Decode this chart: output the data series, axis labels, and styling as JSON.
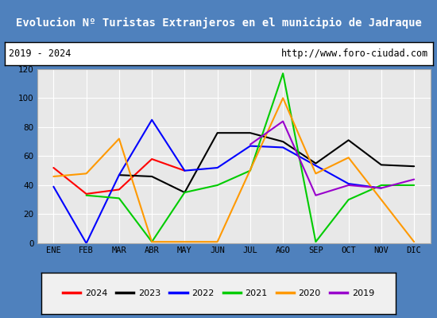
{
  "title": "Evolucion Nº Turistas Extranjeros en el municipio de Jadraque",
  "subtitle_left": "2019 - 2024",
  "subtitle_right": "http://www.foro-ciudad.com",
  "months": [
    "ENE",
    "FEB",
    "MAR",
    "ABR",
    "MAY",
    "JUN",
    "JUL",
    "AGO",
    "SEP",
    "OCT",
    "NOV",
    "DIC"
  ],
  "series": {
    "2024": [
      52,
      34,
      37,
      58,
      50,
      null,
      null,
      null,
      null,
      null,
      null,
      null
    ],
    "2023": [
      null,
      null,
      47,
      46,
      35,
      76,
      76,
      70,
      55,
      71,
      54,
      53
    ],
    "2022": [
      39,
      0,
      47,
      85,
      50,
      52,
      67,
      66,
      null,
      41,
      38,
      null
    ],
    "2021": [
      null,
      33,
      31,
      1,
      35,
      40,
      50,
      117,
      1,
      30,
      40,
      40
    ],
    "2020": [
      46,
      48,
      72,
      1,
      1,
      1,
      null,
      100,
      48,
      59,
      null,
      1
    ],
    "2019": [
      null,
      null,
      null,
      null,
      null,
      null,
      68,
      84,
      33,
      40,
      38,
      44
    ]
  },
  "colors": {
    "2024": "#ff0000",
    "2023": "#000000",
    "2022": "#0000ff",
    "2021": "#00cc00",
    "2020": "#ff9900",
    "2019": "#9900cc"
  },
  "ylim": [
    0,
    120
  ],
  "yticks": [
    0,
    20,
    40,
    60,
    80,
    100,
    120
  ],
  "title_bg": "#4f81bd",
  "title_color": "#ffffff",
  "outer_border": "#4f81bd",
  "subtitle_bg": "#ffffff",
  "plot_bg": "#e8e8e8",
  "grid_color": "#ffffff"
}
